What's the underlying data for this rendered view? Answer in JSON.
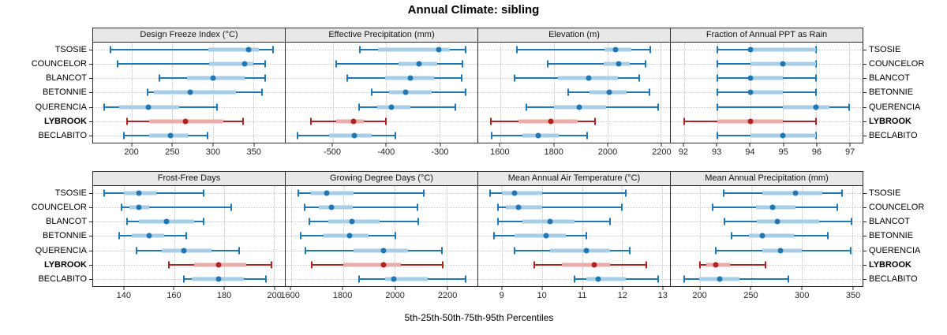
{
  "title": "Annual Climate: sibling",
  "footer": "5th-25th-50th-75th-95th Percentiles",
  "highlight_location": "LYBROOK",
  "locations": [
    "TSOSIE",
    "COUNCELOR",
    "BLANCOT",
    "BETONNIE",
    "QUERENCIA",
    "LYBROOK",
    "BECLABITO"
  ],
  "colors": {
    "blue": "#1f77b4",
    "blue_band": "#a8cde6",
    "red": "#b22222",
    "red_band": "#eaabab",
    "grid": "#c9c9c9",
    "header_bg": "#e8e8e8",
    "border": "#2b2b2b"
  },
  "chart_data": [
    {
      "type": "percentile-dot",
      "title": "Design Freeze Index (°C)",
      "percentiles": [
        5,
        25,
        50,
        75,
        95
      ],
      "xlim": [
        152,
        389
      ],
      "ticks": [
        200,
        250,
        300,
        350
      ],
      "series": [
        {
          "name": "TSOSIE",
          "values": [
            173,
            294,
            344,
            357,
            374
          ]
        },
        {
          "name": "COUNCELOR",
          "values": [
            182,
            295,
            339,
            350,
            365
          ]
        },
        {
          "name": "BLANCOT",
          "values": [
            234,
            268,
            300,
            339,
            365
          ]
        },
        {
          "name": "BETONNIE",
          "values": [
            219,
            227,
            272,
            329,
            361
          ]
        },
        {
          "name": "QUERENCIA",
          "values": [
            166,
            184,
            220,
            258,
            305
          ]
        },
        {
          "name": "LYBROOK",
          "values": [
            194,
            221,
            266,
            313,
            337
          ]
        },
        {
          "name": "BECLABITO",
          "values": [
            190,
            221,
            248,
            269,
            293
          ]
        }
      ]
    },
    {
      "type": "percentile-dot",
      "title": "Effective Precipitation (mm)",
      "percentiles": [
        5,
        25,
        50,
        75,
        95
      ],
      "xlim": [
        -588,
        -229
      ],
      "ticks": [
        -500,
        -400,
        -300
      ],
      "series": [
        {
          "name": "TSOSIE",
          "values": [
            -449,
            -415,
            -302,
            -281,
            -251
          ]
        },
        {
          "name": "COUNCELOR",
          "values": [
            -493,
            -376,
            -338,
            -305,
            -257
          ]
        },
        {
          "name": "BLANCOT",
          "values": [
            -473,
            -402,
            -355,
            -310,
            -259
          ]
        },
        {
          "name": "BETONNIE",
          "values": [
            -427,
            -395,
            -363,
            -315,
            -251
          ]
        },
        {
          "name": "QUERENCIA",
          "values": [
            -450,
            -417,
            -390,
            -354,
            -271
          ]
        },
        {
          "name": "LYBROOK",
          "values": [
            -540,
            -493,
            -461,
            -442,
            -400
          ]
        },
        {
          "name": "BECLABITO",
          "values": [
            -566,
            -507,
            -460,
            -427,
            -383
          ]
        }
      ]
    },
    {
      "type": "percentile-dot",
      "title": "Elevation (m)",
      "percentiles": [
        5,
        25,
        50,
        75,
        95
      ],
      "xlim": [
        1517,
        2234
      ],
      "ticks": [
        1600,
        1800,
        2000,
        2200
      ],
      "series": [
        {
          "name": "TSOSIE",
          "values": [
            1661,
            1990,
            2030,
            2088,
            2159
          ]
        },
        {
          "name": "COUNCELOR",
          "values": [
            1778,
            1985,
            2042,
            2083,
            2143
          ]
        },
        {
          "name": "BLANCOT",
          "values": [
            1652,
            1815,
            1929,
            2039,
            2120
          ]
        },
        {
          "name": "BETONNIE",
          "values": [
            1854,
            1932,
            2008,
            2073,
            2156
          ]
        },
        {
          "name": "QUERENCIA",
          "values": [
            1698,
            1800,
            1896,
            1995,
            2190
          ]
        },
        {
          "name": "LYBROOK",
          "values": [
            1564,
            1668,
            1787,
            1888,
            1954
          ]
        },
        {
          "name": "BECLABITO",
          "values": [
            1568,
            1681,
            1740,
            1818,
            1925
          ]
        }
      ]
    },
    {
      "type": "percentile-dot",
      "title": "Fraction of Annual PPT as Rain",
      "percentiles": [
        5,
        25,
        50,
        75,
        95
      ],
      "xlim": [
        91.6,
        97.4
      ],
      "ticks": [
        92,
        93,
        94,
        95,
        96,
        97
      ],
      "series": [
        {
          "name": "TSOSIE",
          "values": [
            93,
            94,
            94,
            96,
            96
          ]
        },
        {
          "name": "COUNCELOR",
          "values": [
            93,
            94,
            95,
            96,
            96
          ]
        },
        {
          "name": "BLANCOT",
          "values": [
            93,
            94,
            94,
            95,
            96
          ]
        },
        {
          "name": "BETONNIE",
          "values": [
            93,
            94,
            94,
            95,
            96
          ]
        },
        {
          "name": "QUERENCIA",
          "values": [
            93,
            95,
            96,
            96.4,
            97
          ]
        },
        {
          "name": "LYBROOK",
          "values": [
            92,
            93,
            94,
            95,
            96
          ]
        },
        {
          "name": "BECLABITO",
          "values": [
            93,
            94,
            95,
            96,
            96
          ]
        }
      ]
    },
    {
      "type": "percentile-dot",
      "title": "Frost-Free Days",
      "percentiles": [
        5,
        25,
        50,
        75,
        95
      ],
      "xlim": [
        127.5,
        204.5
      ],
      "ticks": [
        140,
        160,
        180,
        200
      ],
      "series": [
        {
          "name": "TSOSIE",
          "values": [
            132,
            140,
            146,
            153,
            172
          ]
        },
        {
          "name": "COUNCELOR",
          "values": [
            139,
            142,
            146,
            150,
            183
          ]
        },
        {
          "name": "BLANCOT",
          "values": [
            141,
            146,
            157,
            168,
            172
          ]
        },
        {
          "name": "BETONNIE",
          "values": [
            138,
            143,
            150,
            156,
            165
          ]
        },
        {
          "name": "QUERENCIA",
          "values": [
            145,
            155,
            164,
            175,
            186
          ]
        },
        {
          "name": "LYBROOK",
          "values": [
            158,
            168,
            178,
            189,
            199
          ]
        },
        {
          "name": "BECLABITO",
          "values": [
            164,
            167,
            178,
            188,
            197
          ]
        }
      ]
    },
    {
      "type": "percentile-dot",
      "title": "Growing Degree Days (°C)",
      "percentiles": [
        5,
        25,
        50,
        75,
        95
      ],
      "xlim": [
        1580,
        2317
      ],
      "ticks": [
        1600,
        1800,
        2000,
        2200
      ],
      "series": [
        {
          "name": "TSOSIE",
          "values": [
            1629,
            1677,
            1737,
            1840,
            2110
          ]
        },
        {
          "name": "COUNCELOR",
          "values": [
            1652,
            1707,
            1757,
            1837,
            2087
          ]
        },
        {
          "name": "BLANCOT",
          "values": [
            1672,
            1744,
            1835,
            1940,
            2090
          ]
        },
        {
          "name": "BETONNIE",
          "values": [
            1637,
            1727,
            1827,
            1897,
            2002
          ]
        },
        {
          "name": "QUERENCIA",
          "values": [
            1657,
            1842,
            1957,
            2050,
            2180
          ]
        },
        {
          "name": "LYBROOK",
          "values": [
            1680,
            1802,
            1955,
            2022,
            2185
          ]
        },
        {
          "name": "BECLABITO",
          "values": [
            1862,
            1962,
            1997,
            2127,
            2272
          ]
        }
      ]
    },
    {
      "type": "percentile-dot",
      "title": "Mean Annual Air Temperature (°C)",
      "percentiles": [
        5,
        25,
        50,
        75,
        95
      ],
      "xlim": [
        8.4,
        13.2
      ],
      "ticks": [
        9,
        10,
        11,
        12,
        13
      ],
      "series": [
        {
          "name": "TSOSIE",
          "values": [
            8.7,
            9.0,
            9.3,
            10.0,
            12.1
          ]
        },
        {
          "name": "COUNCELOR",
          "values": [
            8.9,
            9.1,
            9.4,
            10.0,
            12.0
          ]
        },
        {
          "name": "BLANCOT",
          "values": [
            8.9,
            9.5,
            10.2,
            10.8,
            11.7
          ]
        },
        {
          "name": "BETONNIE",
          "values": [
            8.8,
            9.3,
            10.1,
            10.6,
            11.1
          ]
        },
        {
          "name": "QUERENCIA",
          "values": [
            9.3,
            10.2,
            11.1,
            11.7,
            12.2
          ]
        },
        {
          "name": "LYBROOK",
          "values": [
            9.8,
            10.5,
            11.3,
            11.7,
            12.6
          ]
        },
        {
          "name": "BECLABITO",
          "values": [
            10.8,
            11.1,
            11.4,
            12.1,
            12.9
          ]
        }
      ]
    },
    {
      "type": "percentile-dot",
      "title": "Mean Annual Precipitation (mm)",
      "percentiles": [
        5,
        25,
        50,
        75,
        95
      ],
      "xlim": [
        171,
        360
      ],
      "ticks": [
        200,
        250,
        300,
        350
      ],
      "series": [
        {
          "name": "TSOSIE",
          "values": [
            223,
            261,
            294,
            320,
            340
          ]
        },
        {
          "name": "COUNCELOR",
          "values": [
            212,
            255,
            271,
            294,
            335
          ]
        },
        {
          "name": "BLANCOT",
          "values": [
            224,
            256,
            276,
            317,
            349
          ]
        },
        {
          "name": "BETONNIE",
          "values": [
            231,
            248,
            261,
            292,
            326
          ]
        },
        {
          "name": "QUERENCIA",
          "values": [
            215,
            261,
            279,
            300,
            348
          ]
        },
        {
          "name": "LYBROOK",
          "values": [
            200,
            206,
            215,
            229,
            264
          ]
        },
        {
          "name": "BECLABITO",
          "values": [
            184,
            199,
            219,
            239,
            287
          ]
        }
      ]
    }
  ]
}
